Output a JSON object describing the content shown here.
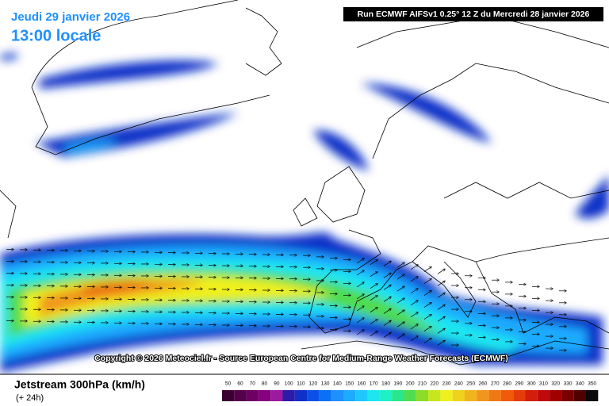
{
  "header": {
    "date": "Jeudi 29 janvier 2026",
    "time": "13:00 locale",
    "run": "Run ECMWF AIFSv1 0.25° 12 Z du Mercredi 28 janvier 2026"
  },
  "copyright": "Copyright © 2026 Meteociel.fr - Source European Centre for Medium-Range Weather Forecasts (ECMWF)",
  "footer": {
    "title": "Jetstream 300hPa (km/h)",
    "lead": "(+ 24h)"
  },
  "legend": {
    "values": [
      50,
      60,
      70,
      80,
      90,
      100,
      110,
      120,
      130,
      140,
      150,
      160,
      170,
      180,
      190,
      200,
      210,
      220,
      230,
      240,
      250,
      260,
      270,
      280,
      290,
      300,
      310,
      320,
      330,
      340,
      350
    ],
    "colors": [
      "#3c0030",
      "#55004a",
      "#6e0064",
      "#860080",
      "#9c1aa0",
      "#2c1aa8",
      "#1030c8",
      "#0a50e6",
      "#0a70f5",
      "#1e90ff",
      "#1eaaff",
      "#1ec8ff",
      "#1ee6f0",
      "#1ef0c8",
      "#28e68c",
      "#50dc50",
      "#8cdc28",
      "#c8e61e",
      "#f0f01e",
      "#f0d21e",
      "#f0b41e",
      "#f0961e",
      "#f07814",
      "#f05a0a",
      "#e63c0a",
      "#d21e0a",
      "#be0a0a",
      "#a00000",
      "#780000",
      "#500000",
      "#0a0a0a"
    ]
  }
}
